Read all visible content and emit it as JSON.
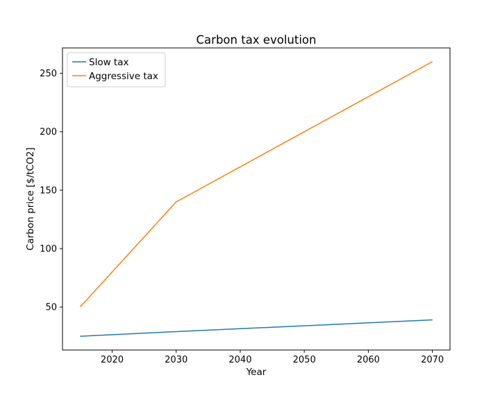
{
  "chart_data": {
    "type": "line",
    "title": "Carbon tax evolution",
    "xlabel": "Year",
    "ylabel": "Carbon price [$/tCO2]",
    "xlim": [
      2012.25,
      2072.75
    ],
    "ylim": [
      13.25,
      271.75
    ],
    "xticks": [
      2020,
      2030,
      2040,
      2050,
      2060,
      2070
    ],
    "yticks": [
      50,
      100,
      150,
      200,
      250
    ],
    "grid": false,
    "legend": "top-left",
    "series": [
      {
        "name": "Slow tax",
        "color": "#1f77b4",
        "x": [
          2015,
          2030,
          2070
        ],
        "y": [
          25,
          29,
          39
        ]
      },
      {
        "name": "Aggressive tax",
        "color": "#ff7f0e",
        "x": [
          2015,
          2030,
          2070
        ],
        "y": [
          50,
          140,
          260
        ]
      }
    ]
  }
}
